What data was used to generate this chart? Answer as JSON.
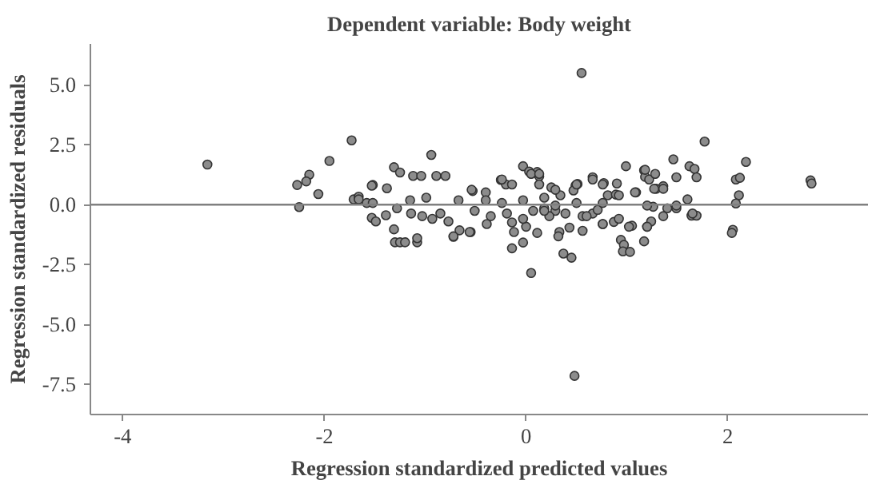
{
  "chart_data": {
    "type": "scatter",
    "title": "Dependent variable: Body weight",
    "xlabel": "Regression standardized predicted values",
    "ylabel": "Regression standardized residuals",
    "xlim": [
      -4.32,
      3.39
    ],
    "ylim": [
      -8.75,
      6.7
    ],
    "xticks": [
      -4,
      -2,
      0,
      2
    ],
    "yticks": [
      {
        "value": -7.5,
        "label": "-7.5"
      },
      {
        "value": -5,
        "label": "-5.0"
      },
      {
        "value": -2.5,
        "label": "-2.5"
      },
      {
        "value": 0,
        "label": "0.0"
      },
      {
        "value": 2.5,
        "label": "2.5"
      },
      {
        "value": 5,
        "label": "5.0"
      }
    ],
    "grid": false,
    "marker": "circle",
    "ref_lines": [
      {
        "axis": "y",
        "value": 0,
        "color": "#808080"
      }
    ],
    "series": [
      {
        "color": "#8c8c8c",
        "x": [
          -3.16,
          -1.73,
          -1.95,
          -2.15,
          -2.18,
          -2.27,
          -2.06,
          -2.25,
          -0.94,
          -1.31,
          -1.25,
          -1.31,
          -1.3,
          -1.25,
          -1.2,
          -1.08,
          -1.53,
          -1.49,
          -1.39,
          -1.71,
          -1.66,
          -1.58,
          -1.52,
          -1.12,
          -1.04,
          -0.89,
          -0.8,
          -0.72,
          -0.66,
          -0.55,
          -0.53,
          0.55,
          0.48,
          0.05,
          0.37,
          0.45,
          -0.14,
          -0.03,
          1.77,
          2.18,
          2.08,
          2.12,
          2.11,
          2.08,
          2.05,
          2.04,
          2.82,
          2.83,
          1.62,
          1.67,
          1.69,
          1.46,
          1.49,
          1.64,
          1.69,
          1.6,
          0.99,
          1.17,
          1.18,
          1.22,
          0.94,
          0.97,
          0.96,
          1.03,
          1.17,
          1.2,
          1.24,
          1.05,
          0.9,
          0.66,
          0.77,
          0.56,
          0.76,
          0.87,
          0.56,
          0.43,
          0.33,
          0.32,
          0.11,
          0.0,
          -0.03,
          0.03,
          0.11,
          0.13,
          0.49,
          0.47,
          0.51,
          0.25,
          0.34,
          -0.25,
          -0.2,
          -0.39,
          -0.14,
          -0.12,
          1.26,
          1.4,
          1.36,
          1.29,
          1.09,
          0.81,
          0.89,
          0.66,
          0.71,
          0.18,
          0.29,
          -1.53,
          -1.38,
          -1.28,
          -1.14,
          -1.03,
          -0.93,
          -0.85,
          -0.77,
          -1.08,
          -0.72,
          -0.56,
          -0.54,
          -0.4,
          -0.24,
          -0.14,
          0.05,
          0.13,
          -0.51,
          -0.35,
          -0.19,
          -0.03,
          0.07,
          0.23,
          -1.66,
          -1.52,
          -1.15,
          -0.99,
          -0.67,
          -0.4,
          -0.24,
          -0.03,
          0.18,
          1.18,
          1.28,
          0.76,
          0.92,
          1.08,
          1.27,
          1.36,
          0.18,
          0.39,
          0.6,
          0.76,
          0.92,
          1.02,
          1.2,
          1.36,
          1.49,
          1.65,
          0.13,
          0.29,
          0.5,
          0.66,
          1.49,
          1.2,
          0.76,
          0.5,
          0.29
        ],
        "values": [
          1.67,
          2.68,
          1.82,
          1.25,
          0.97,
          0.82,
          0.44,
          -0.1,
          2.07,
          1.56,
          1.34,
          -1.03,
          -1.57,
          -1.57,
          -1.57,
          -1.57,
          -0.55,
          -0.7,
          -0.44,
          0.22,
          0.33,
          0.07,
          0.82,
          1.2,
          1.2,
          1.2,
          1.2,
          -1.34,
          -1.07,
          -1.14,
          0.57,
          5.49,
          -7.14,
          -2.85,
          -2.04,
          -2.21,
          -1.82,
          -1.58,
          2.63,
          1.78,
          1.05,
          1.12,
          0.39,
          0.05,
          -1.05,
          -1.18,
          1.01,
          0.88,
          1.6,
          1.49,
          1.14,
          1.89,
          1.14,
          -0.46,
          -0.46,
          0.22,
          1.6,
          1.43,
          1.16,
          1.05,
          -1.47,
          -1.68,
          -1.95,
          -1.97,
          -1.53,
          -0.92,
          -0.7,
          -0.88,
          0.88,
          1.14,
          0.9,
          -0.48,
          -0.81,
          -0.72,
          -1.09,
          -0.96,
          -1.14,
          -1.32,
          -1.18,
          -0.92,
          1.6,
          1.38,
          1.36,
          1.18,
          0.79,
          0.59,
          0.86,
          0.72,
          0.39,
          1.03,
          0.84,
          -0.81,
          -0.74,
          -1.14,
          -0.09,
          -0.15,
          0.77,
          0.66,
          0.51,
          0.39,
          0.42,
          -0.37,
          -0.22,
          -0.15,
          -0.26,
          0.79,
          0.68,
          -0.15,
          -0.37,
          -0.48,
          -0.59,
          -0.37,
          -0.7,
          -1.4,
          -1.32,
          -1.14,
          0.62,
          0.51,
          1.05,
          0.84,
          1.28,
          0.84,
          -0.26,
          -0.48,
          -0.37,
          -0.59,
          -0.26,
          -0.48,
          0.22,
          0.07,
          0.18,
          0.29,
          0.18,
          0.18,
          0.07,
          0.18,
          0.29,
          1.45,
          1.28,
          0.84,
          0.39,
          0.51,
          0.66,
          0.66,
          -0.26,
          -0.37,
          -0.48,
          -0.81,
          -0.59,
          -0.92,
          -0.92,
          -0.48,
          -0.15,
          -0.37,
          1.28,
          0.62,
          0.84,
          1.05,
          -0.04,
          -0.04,
          0.07,
          0.07,
          -0.04
        ]
      }
    ]
  }
}
